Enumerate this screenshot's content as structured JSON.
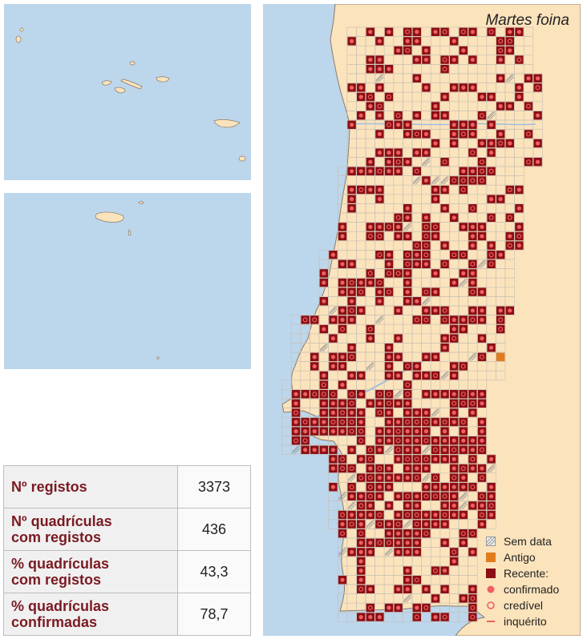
{
  "title": "Martes foina",
  "legend": {
    "sem_data": "Sem data",
    "antigo": "Antigo",
    "recente": "Recente:",
    "confirmado": "confirmado",
    "credivel": "credível",
    "inquerito": "inquérito"
  },
  "stats": [
    {
      "label_line1": "Nº registos",
      "label_line2": "",
      "value": "3373"
    },
    {
      "label_line1": "Nº quadrículas",
      "label_line2": "com registos",
      "value": "436"
    },
    {
      "label_line1": "% quadrículas",
      "label_line2": "com registos",
      "value": "43,3"
    },
    {
      "label_line1": "% quadrículas",
      "label_line2": "confirmadas",
      "value": "78,7"
    }
  ],
  "colors": {
    "sea": "#bcd6ec",
    "land": "#fbe3bc",
    "recent": "#8b0f14",
    "old": "#e07c1e",
    "confirmed_dot": "#f06060",
    "label": "#7a1a22"
  }
}
